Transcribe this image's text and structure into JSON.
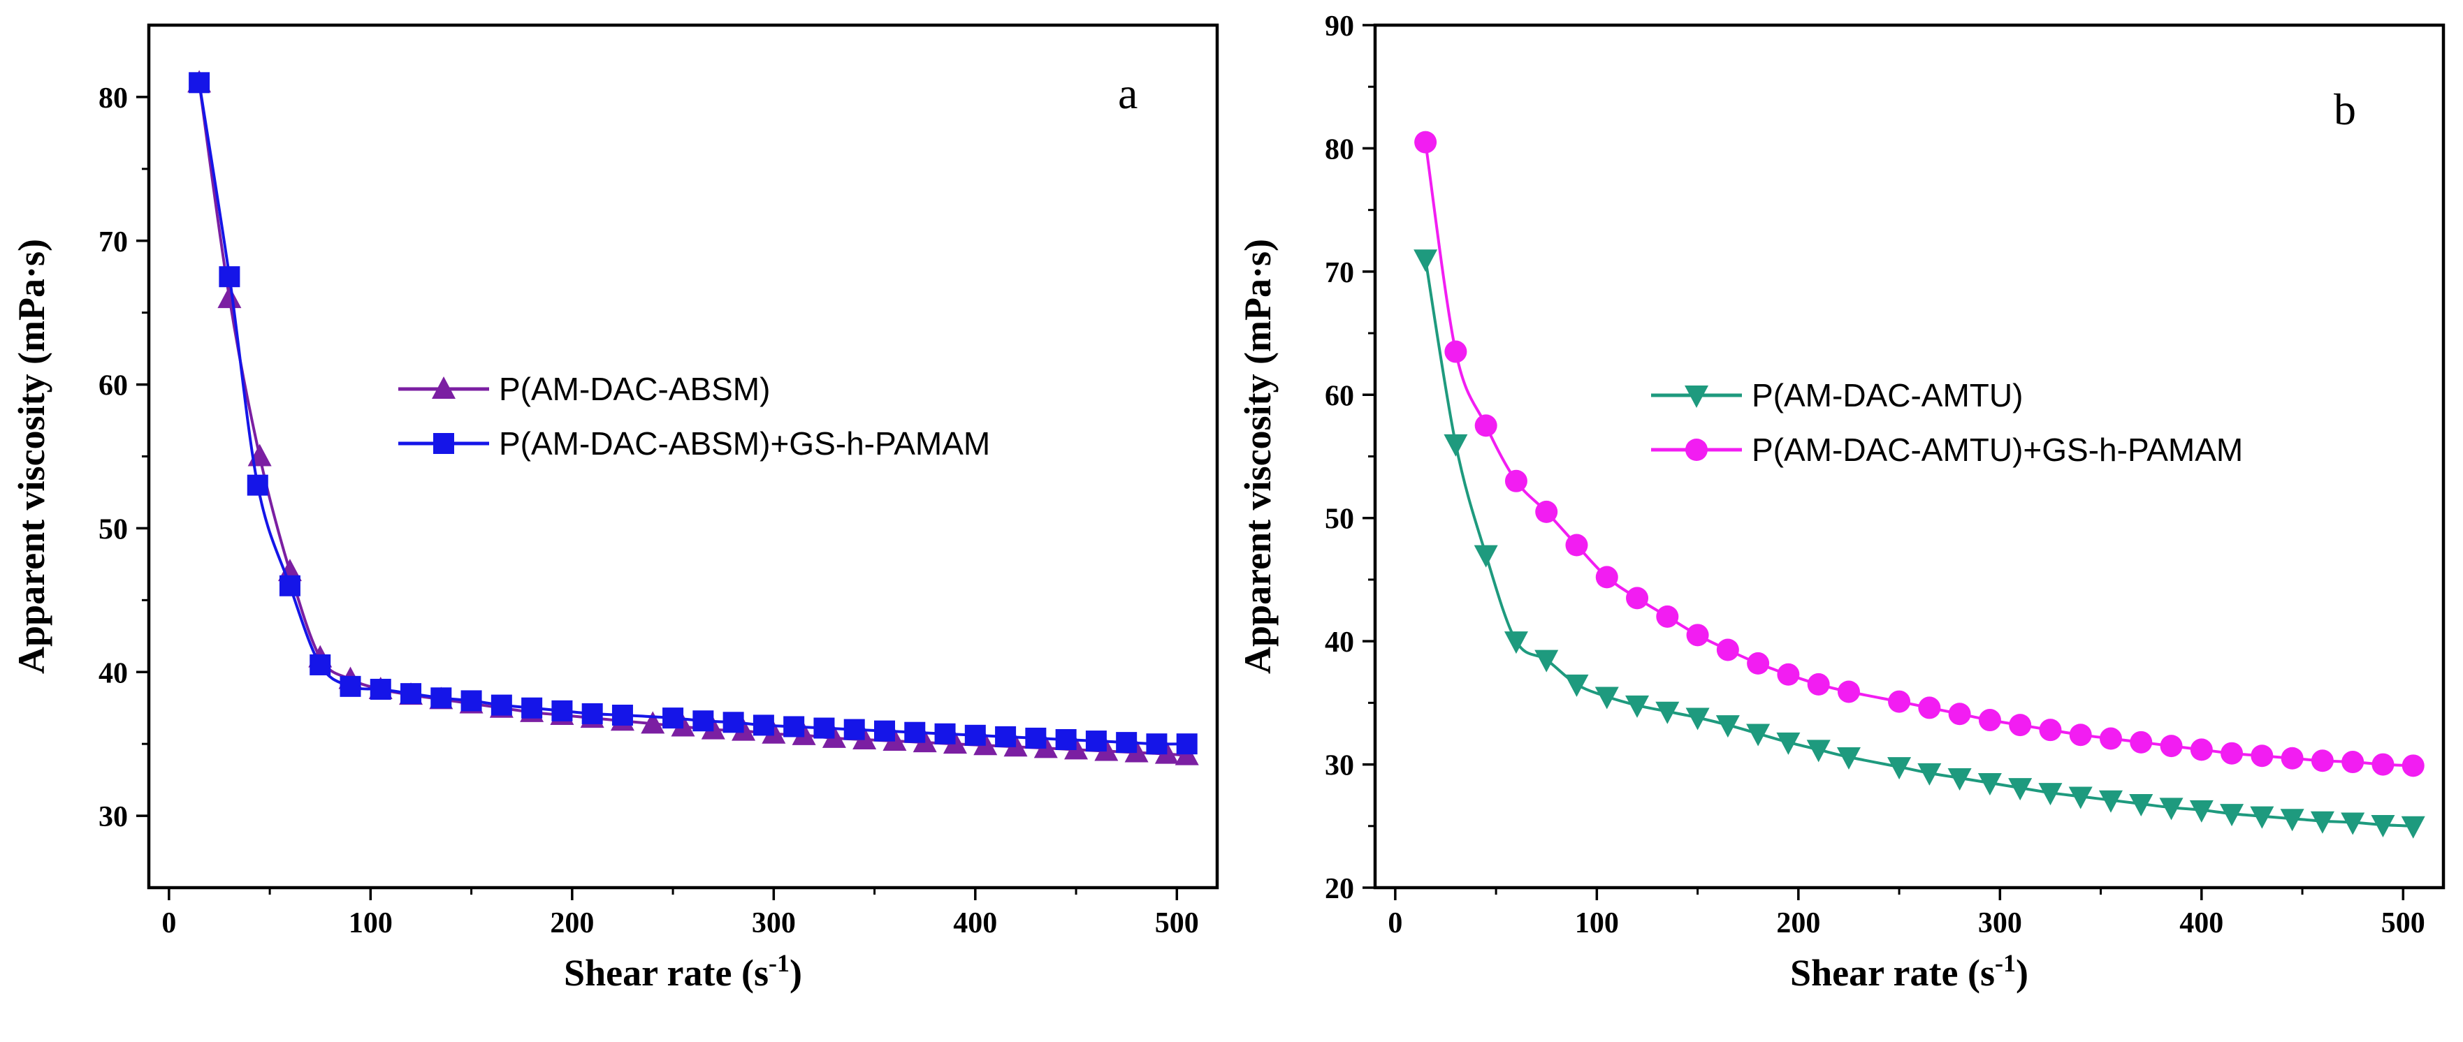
{
  "chart_data": [
    {
      "panel": "a",
      "type": "line",
      "xlabel": "Shear rate (s",
      "xlabel_sup": "-1",
      "xlabel_close": ")",
      "ylabel": "Apparent viscosity (mPa·s)",
      "xlim": [
        -10,
        520
      ],
      "ylim": [
        25,
        85
      ],
      "xticks": [
        0,
        100,
        200,
        300,
        400,
        500
      ],
      "yticks": [
        30,
        40,
        50,
        60,
        70,
        80
      ],
      "xtick_labels": [
        "0",
        "100",
        "200",
        "300",
        "400",
        "500"
      ],
      "ytick_labels": [
        "30",
        "40",
        "50",
        "60",
        "70",
        "80"
      ],
      "legend_position": "center-right",
      "series": [
        {
          "name": "P(AM-DAC-ABSM)",
          "color": "#7B1FA2",
          "marker": "triangle-up",
          "x": [
            15,
            30,
            45,
            60,
            75,
            90,
            105,
            120,
            135,
            150,
            165,
            180,
            195,
            210,
            225,
            240,
            255,
            270,
            285,
            300,
            315,
            330,
            345,
            360,
            375,
            390,
            405,
            420,
            435,
            450,
            465,
            480,
            495,
            505
          ],
          "y": [
            81,
            66,
            55,
            47,
            41,
            39.5,
            38.8,
            38.4,
            38.1,
            37.8,
            37.5,
            37.2,
            37.0,
            36.8,
            36.6,
            36.4,
            36.2,
            36.0,
            35.9,
            35.7,
            35.6,
            35.4,
            35.3,
            35.2,
            35.1,
            35.0,
            34.9,
            34.8,
            34.7,
            34.6,
            34.5,
            34.4,
            34.3,
            34.2
          ]
        },
        {
          "name": "P(AM-DAC-ABSM)+GS-h-PAMAM",
          "color": "#1515E8",
          "marker": "square",
          "x": [
            15,
            30,
            44,
            60,
            75,
            90,
            105,
            120,
            135,
            150,
            165,
            180,
            195,
            210,
            225,
            250,
            265,
            280,
            295,
            310,
            325,
            340,
            355,
            370,
            385,
            400,
            415,
            430,
            445,
            460,
            475,
            490,
            505
          ],
          "y": [
            81,
            67.5,
            53,
            46,
            40.5,
            39,
            38.8,
            38.5,
            38.2,
            38,
            37.7,
            37.5,
            37.3,
            37.1,
            37,
            36.8,
            36.6,
            36.5,
            36.3,
            36.2,
            36.1,
            36,
            35.9,
            35.8,
            35.7,
            35.6,
            35.5,
            35.4,
            35.3,
            35.2,
            35.1,
            35.0,
            35.0
          ]
        }
      ]
    },
    {
      "panel": "b",
      "type": "line",
      "xlabel": "Shear rate (s",
      "xlabel_sup": "-1",
      "xlabel_close": ")",
      "ylabel": "Apparent viscosity (mPa·s)",
      "xlim": [
        -10,
        520
      ],
      "ylim": [
        20,
        90
      ],
      "xticks": [
        0,
        100,
        200,
        300,
        400,
        500
      ],
      "yticks": [
        20,
        30,
        40,
        50,
        60,
        70,
        80,
        90
      ],
      "xtick_labels": [
        "0",
        "100",
        "200",
        "300",
        "400",
        "500"
      ],
      "ytick_labels": [
        "20",
        "30",
        "40",
        "50",
        "60",
        "70",
        "80",
        "90"
      ],
      "legend_position": "center-right",
      "series": [
        {
          "name": "P(AM-DAC-AMTU)",
          "color": "#1E9A7E",
          "marker": "triangle-down",
          "x": [
            15,
            30,
            45,
            60,
            75,
            90,
            105,
            120,
            135,
            150,
            165,
            180,
            195,
            210,
            225,
            250,
            265,
            280,
            295,
            310,
            325,
            340,
            355,
            370,
            385,
            400,
            415,
            430,
            445,
            460,
            475,
            490,
            505
          ],
          "y": [
            71,
            56,
            47,
            40,
            38.5,
            36.5,
            35.5,
            34.8,
            34.3,
            33.8,
            33.2,
            32.5,
            31.8,
            31.2,
            30.6,
            29.8,
            29.3,
            28.9,
            28.5,
            28.1,
            27.7,
            27.4,
            27.1,
            26.8,
            26.5,
            26.3,
            26.0,
            25.8,
            25.6,
            25.4,
            25.3,
            25.1,
            25.0
          ]
        },
        {
          "name": "P(AM-DAC-AMTU)+GS-h-PAMAM",
          "color": "#F21DF2",
          "marker": "circle",
          "x": [
            15,
            30,
            45,
            60,
            75,
            90,
            105,
            120,
            135,
            150,
            165,
            180,
            195,
            210,
            225,
            250,
            265,
            280,
            295,
            310,
            325,
            340,
            355,
            370,
            385,
            400,
            415,
            430,
            445,
            460,
            475,
            490,
            505
          ],
          "y": [
            80.5,
            63.5,
            57.5,
            53,
            50.5,
            47.8,
            45.2,
            43.5,
            42,
            40.5,
            39.3,
            38.2,
            37.3,
            36.5,
            35.9,
            35.1,
            34.6,
            34.1,
            33.6,
            33.2,
            32.8,
            32.4,
            32.1,
            31.8,
            31.5,
            31.2,
            30.9,
            30.7,
            30.5,
            30.3,
            30.2,
            30.0,
            29.9
          ]
        }
      ]
    }
  ]
}
